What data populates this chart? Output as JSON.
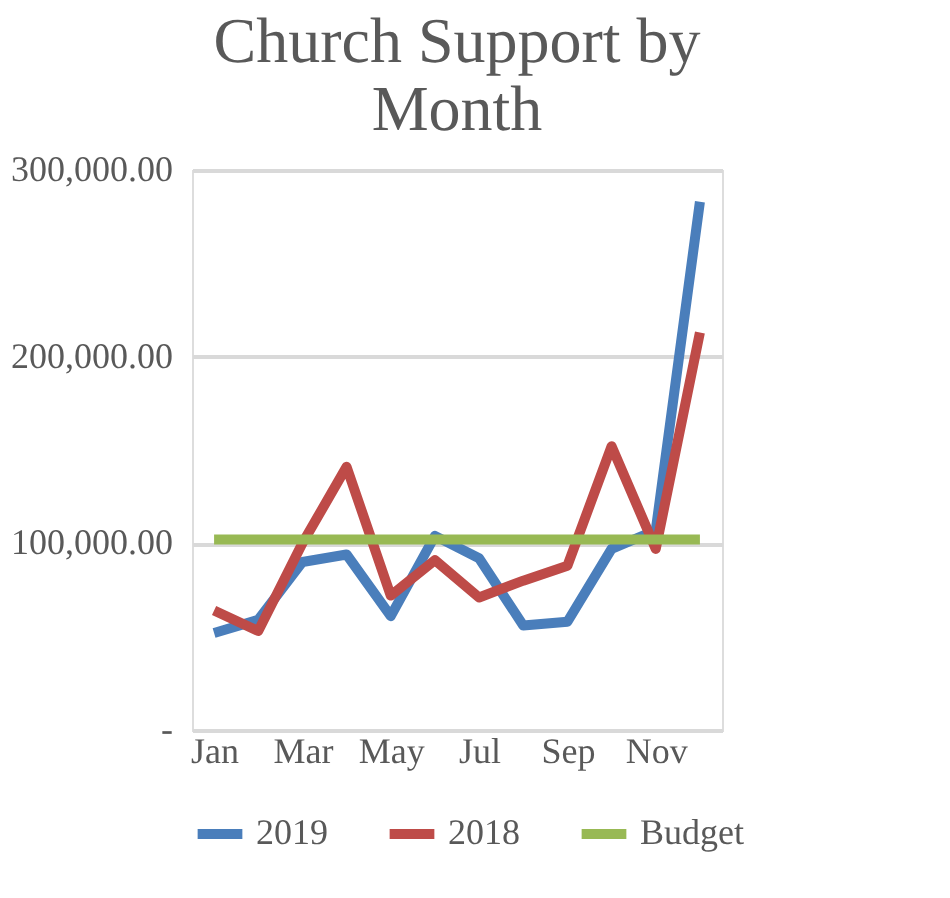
{
  "chart_data": {
    "type": "line",
    "title": "Church Support by Month",
    "categories": [
      "Jan",
      null,
      "Mar",
      null,
      "May",
      null,
      "Jul",
      null,
      "Sep",
      null,
      "Nov",
      null
    ],
    "series": [
      {
        "name": "2019",
        "color": "#4a7ebb",
        "values": [
          52000,
          59000,
          90000,
          94000,
          61000,
          104000,
          92000,
          56000,
          58000,
          97000,
          107000,
          283000
        ]
      },
      {
        "name": "2018",
        "color": "#be4b48",
        "values": [
          64000,
          53000,
          100000,
          141000,
          72000,
          91000,
          71000,
          80000,
          88000,
          152000,
          97000,
          213000
        ]
      },
      {
        "name": "Budget",
        "color": "#98b954",
        "values": [
          102000,
          102000,
          102000,
          102000,
          102000,
          102000,
          102000,
          102000,
          102000,
          102000,
          102000,
          102000
        ]
      }
    ],
    "ylim": [
      0,
      300000
    ],
    "yticks": [
      {
        "value": 0,
        "label": "-"
      },
      {
        "value": 100000,
        "label": "100,000.00"
      },
      {
        "value": 200000,
        "label": "200,000.00"
      },
      {
        "value": 300000,
        "label": "300,000.00"
      }
    ],
    "grid": "y",
    "legend": "bottom",
    "marker": "none",
    "line_style": "solid"
  }
}
